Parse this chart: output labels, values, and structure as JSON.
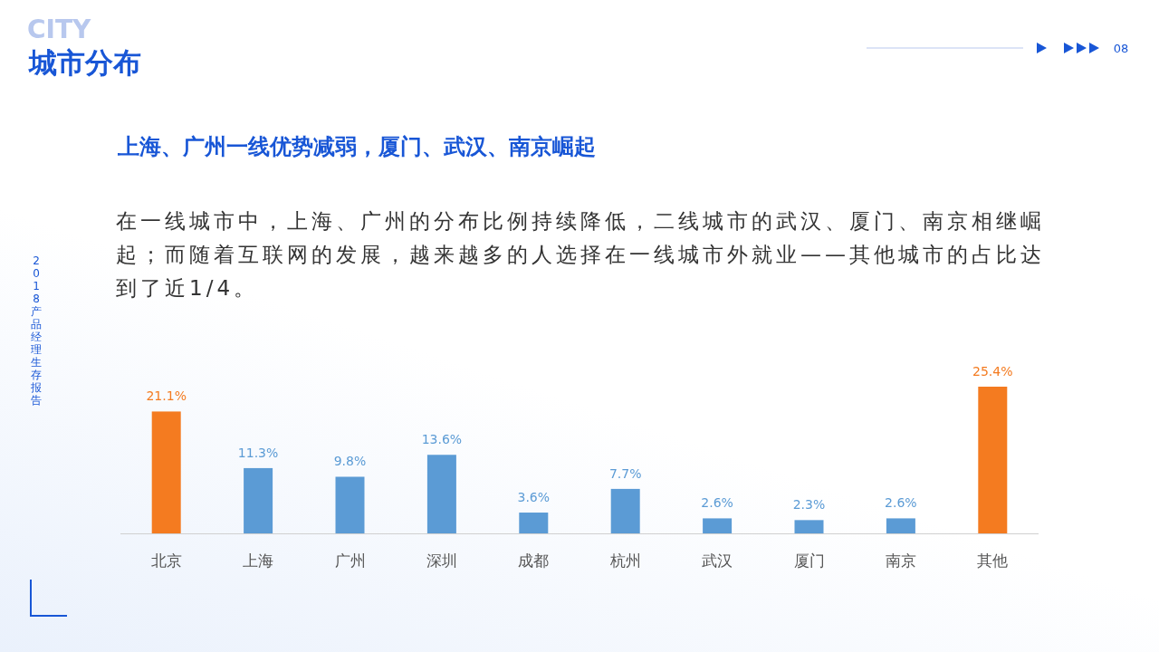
{
  "chart_data": {
    "type": "bar",
    "title": "城市分布",
    "subtitle": "上海、广州一线优势减弱，厦门、武汉、南京崛起",
    "annotations": [
      "在一线城市中，上海、广州的分布比例持续降低，二线城市的武汉、厦门、南京相继崛起；而随着互联网的发展，越来越多的人选择在一线城市外就业——其他城市的占比达到了近1/4。",
      "CITY",
      "08",
      "2018产品经理生存报告"
    ],
    "categories": [
      "北京",
      "上海",
      "广州",
      "深圳",
      "成都",
      "杭州",
      "武汉",
      "厦门",
      "南京",
      "其他"
    ],
    "values": [
      21.1,
      11.3,
      9.8,
      13.6,
      3.6,
      7.7,
      2.6,
      2.3,
      2.6,
      25.4
    ],
    "colors": [
      "#f47b20",
      "#5b9bd5",
      "#5b9bd5",
      "#5b9bd5",
      "#5b9bd5",
      "#5b9bd5",
      "#5b9bd5",
      "#5b9bd5",
      "#5b9bd5",
      "#f47b20"
    ],
    "value_labels": [
      "21.1%",
      "11.3%",
      "9.8%",
      "13.6%",
      "3.6%",
      "7.7%",
      "2.6%",
      "2.3%",
      "2.6%",
      "25.4%"
    ],
    "data_labels": false
  }
}
